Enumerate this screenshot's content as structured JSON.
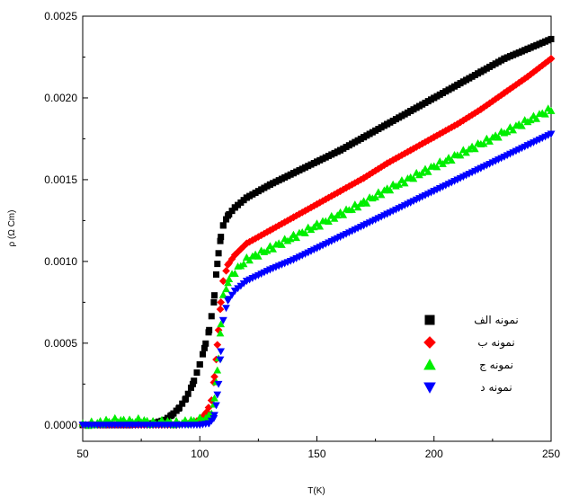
{
  "chart_data": {
    "type": "scatter",
    "xlabel": "T(K)",
    "ylabel": "ρ (Ω Cm)",
    "xlim": [
      50,
      250
    ],
    "ylim": [
      -0.0001,
      0.0025
    ],
    "xticks": [
      50,
      100,
      150,
      200,
      250
    ],
    "yticks": [
      0.0,
      0.0005,
      0.001,
      0.0015,
      0.002,
      0.0025
    ],
    "xtick_labels": [
      "50",
      "100",
      "150",
      "200",
      "250"
    ],
    "ytick_labels": [
      "0.0000",
      "0.0005",
      "0.0010",
      "0.0015",
      "0.0020",
      "0.0025"
    ],
    "grid": false,
    "legend_position": "center-right",
    "series": [
      {
        "name": "نمونه الف",
        "color": "#000000",
        "marker": "square",
        "points": [
          [
            50,
            0.0
          ],
          [
            60,
            0.0
          ],
          [
            70,
            0.0
          ],
          [
            80,
            1e-05
          ],
          [
            85,
            3e-05
          ],
          [
            88,
            6e-05
          ],
          [
            91,
            0.0001
          ],
          [
            94,
            0.00016
          ],
          [
            97,
            0.00025
          ],
          [
            100,
            0.00037
          ],
          [
            102,
            0.00047
          ],
          [
            104,
            0.00058
          ],
          [
            106,
            0.00075
          ],
          [
            107,
            0.00092
          ],
          [
            108,
            0.00105
          ],
          [
            109,
            0.00115
          ],
          [
            110,
            0.00122
          ],
          [
            112,
            0.00128
          ],
          [
            115,
            0.00133
          ],
          [
            120,
            0.00139
          ],
          [
            130,
            0.00147
          ],
          [
            140,
            0.00154
          ],
          [
            150,
            0.00161
          ],
          [
            160,
            0.00168
          ],
          [
            170,
            0.00176
          ],
          [
            180,
            0.00184
          ],
          [
            190,
            0.00192
          ],
          [
            200,
            0.002
          ],
          [
            210,
            0.00208
          ],
          [
            220,
            0.00216
          ],
          [
            230,
            0.00224
          ],
          [
            240,
            0.0023
          ],
          [
            250,
            0.00236
          ]
        ]
      },
      {
        "name": "نمونه ب",
        "color": "#ff0000",
        "marker": "diamond",
        "points": [
          [
            50,
            0.0
          ],
          [
            70,
            0.0
          ],
          [
            90,
            0.0
          ],
          [
            96,
            1e-05
          ],
          [
            100,
            3e-05
          ],
          [
            103,
            8e-05
          ],
          [
            105,
            0.00015
          ],
          [
            106,
            0.00026
          ],
          [
            107,
            0.0004
          ],
          [
            108,
            0.00058
          ],
          [
            109,
            0.00075
          ],
          [
            110,
            0.00088
          ],
          [
            112,
            0.00098
          ],
          [
            115,
            0.00104
          ],
          [
            120,
            0.00111
          ],
          [
            130,
            0.00119
          ],
          [
            140,
            0.00127
          ],
          [
            150,
            0.00135
          ],
          [
            160,
            0.00143
          ],
          [
            170,
            0.00151
          ],
          [
            180,
            0.0016
          ],
          [
            190,
            0.00168
          ],
          [
            200,
            0.00176
          ],
          [
            210,
            0.00184
          ],
          [
            220,
            0.00193
          ],
          [
            230,
            0.00203
          ],
          [
            240,
            0.00213
          ],
          [
            250,
            0.00224
          ]
        ]
      },
      {
        "name": "نمونه ج",
        "color": "#00ee00",
        "marker": "triangle-up",
        "points": [
          [
            50,
            0.0
          ],
          [
            55,
            1e-05
          ],
          [
            60,
            2e-05
          ],
          [
            65,
            3e-05
          ],
          [
            70,
            2e-05
          ],
          [
            75,
            3e-05
          ],
          [
            80,
            1e-05
          ],
          [
            85,
            2e-05
          ],
          [
            90,
            1e-05
          ],
          [
            95,
            2e-05
          ],
          [
            100,
            3e-05
          ],
          [
            104,
            5e-05
          ],
          [
            106,
            0.00012
          ],
          [
            107,
            0.00025
          ],
          [
            108,
            0.00042
          ],
          [
            109,
            0.00062
          ],
          [
            110,
            0.00078
          ],
          [
            112,
            0.00088
          ],
          [
            115,
            0.00094
          ],
          [
            120,
            0.00101
          ],
          [
            130,
            0.00108
          ],
          [
            140,
            0.00115
          ],
          [
            150,
            0.00122
          ],
          [
            160,
            0.00129
          ],
          [
            170,
            0.00136
          ],
          [
            180,
            0.00144
          ],
          [
            190,
            0.00151
          ],
          [
            200,
            0.00158
          ],
          [
            210,
            0.00165
          ],
          [
            220,
            0.00172
          ],
          [
            230,
            0.00179
          ],
          [
            240,
            0.00186
          ],
          [
            250,
            0.00193
          ]
        ]
      },
      {
        "name": "نمونه د",
        "color": "#0000ff",
        "marker": "triangle-down",
        "points": [
          [
            50,
            0.0
          ],
          [
            70,
            0.0
          ],
          [
            90,
            0.0
          ],
          [
            100,
            0.0
          ],
          [
            104,
            1e-05
          ],
          [
            106,
            4e-05
          ],
          [
            107,
            0.00012
          ],
          [
            108,
            0.00025
          ],
          [
            109,
            0.00045
          ],
          [
            110,
            0.00064
          ],
          [
            112,
            0.00076
          ],
          [
            115,
            0.00082
          ],
          [
            120,
            0.00088
          ],
          [
            130,
            0.00095
          ],
          [
            140,
            0.00101
          ],
          [
            150,
            0.00108
          ],
          [
            160,
            0.00115
          ],
          [
            170,
            0.00122
          ],
          [
            180,
            0.00129
          ],
          [
            190,
            0.00136
          ],
          [
            200,
            0.00143
          ],
          [
            210,
            0.0015
          ],
          [
            220,
            0.00157
          ],
          [
            230,
            0.00164
          ],
          [
            240,
            0.00171
          ],
          [
            250,
            0.00178
          ]
        ]
      }
    ]
  }
}
